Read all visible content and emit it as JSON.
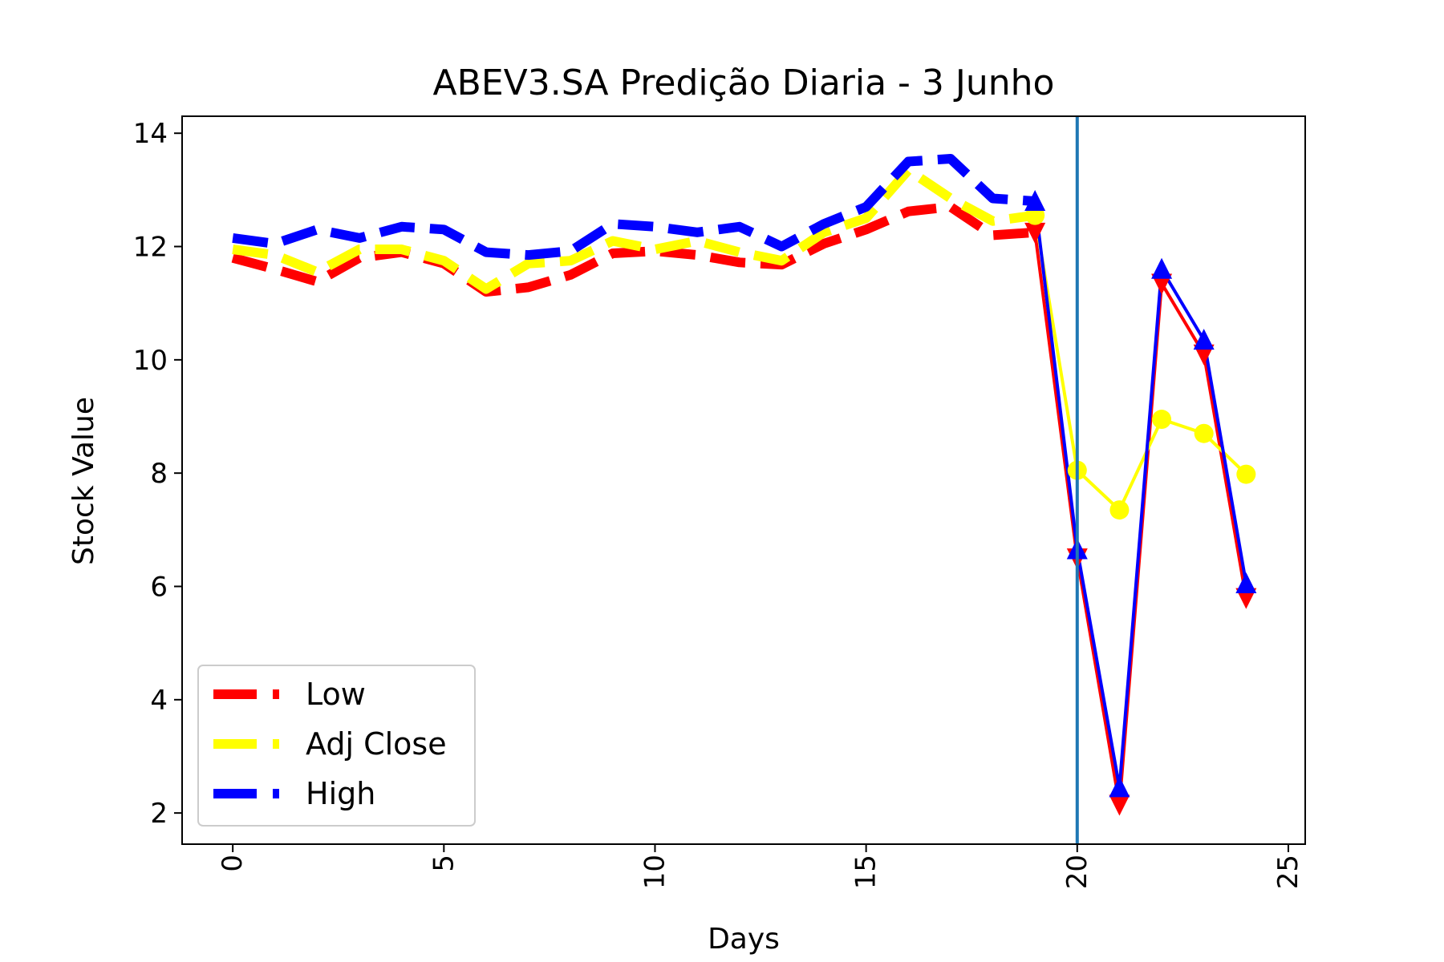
{
  "chart_data": {
    "type": "line",
    "title": "ABEV3.SA Predição Diaria - 3 Junho",
    "xlabel": "Days",
    "ylabel": "Stock Value",
    "xlim": [
      -1.2,
      25.4
    ],
    "ylim": [
      1.45,
      14.3
    ],
    "xticks": [
      0,
      5,
      10,
      15,
      20,
      25
    ],
    "yticks": [
      2,
      4,
      6,
      8,
      10,
      12,
      14
    ],
    "split_day": 20,
    "split_color": "#1f77b4",
    "legend_position": "lower-left",
    "series": [
      {
        "name": "Low",
        "color": "#ff0000",
        "history": {
          "x": [
            0,
            1,
            2,
            3,
            4,
            5,
            6,
            7,
            8,
            9,
            10,
            11,
            12,
            13,
            14,
            15,
            16,
            17,
            18,
            19
          ],
          "y": [
            11.8,
            11.6,
            11.38,
            11.8,
            11.9,
            11.7,
            11.2,
            11.28,
            11.5,
            11.88,
            11.92,
            11.85,
            11.72,
            11.68,
            12.05,
            12.3,
            12.62,
            12.7,
            12.2,
            12.25
          ]
        },
        "prediction": {
          "marker": "triangle-down",
          "x": [
            19,
            20,
            21,
            22,
            23,
            24
          ],
          "y": [
            12.25,
            6.5,
            2.15,
            11.35,
            10.1,
            5.8
          ]
        }
      },
      {
        "name": "Adj Close",
        "color": "#ffff00",
        "history": {
          "x": [
            0,
            1,
            2,
            3,
            4,
            5,
            6,
            7,
            8,
            9,
            10,
            11,
            12,
            13,
            14,
            15,
            16,
            17,
            18,
            19
          ],
          "y": [
            11.95,
            11.85,
            11.55,
            11.95,
            11.95,
            11.75,
            11.25,
            11.7,
            11.75,
            12.1,
            11.95,
            12.1,
            11.9,
            11.75,
            12.25,
            12.5,
            13.35,
            12.85,
            12.45,
            12.55
          ]
        },
        "prediction": {
          "marker": "circle",
          "x": [
            19,
            20,
            21,
            22,
            23,
            24
          ],
          "y": [
            12.55,
            8.05,
            7.35,
            8.95,
            8.7,
            7.98
          ]
        }
      },
      {
        "name": "High",
        "color": "#0000ff",
        "history": {
          "x": [
            0,
            1,
            2,
            3,
            4,
            5,
            6,
            7,
            8,
            9,
            10,
            11,
            12,
            13,
            14,
            15,
            16,
            17,
            18,
            19
          ],
          "y": [
            12.15,
            12.05,
            12.3,
            12.15,
            12.35,
            12.3,
            11.9,
            11.85,
            11.92,
            12.4,
            12.35,
            12.25,
            12.35,
            12.0,
            12.4,
            12.7,
            13.5,
            13.55,
            12.85,
            12.8
          ]
        },
        "prediction": {
          "marker": "triangle-up",
          "x": [
            19,
            20,
            21,
            22,
            23,
            24
          ],
          "y": [
            12.8,
            6.65,
            2.45,
            11.6,
            10.35,
            6.05
          ]
        }
      }
    ]
  }
}
